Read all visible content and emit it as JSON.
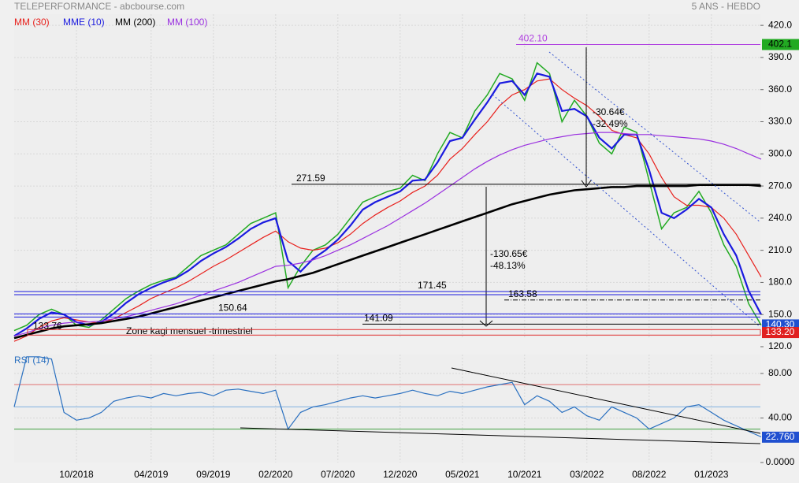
{
  "chart_data": [
    {
      "type": "line",
      "title": "TELEPERFORMANCE - abcbourse.com",
      "subtitle": "5 ANS - HEBDO",
      "color": "#22aa22",
      "values": [
        135,
        140,
        150,
        155,
        150,
        140,
        138,
        145,
        155,
        165,
        172,
        178,
        182,
        185,
        195,
        205,
        210,
        215,
        225,
        235,
        240,
        245,
        175,
        195,
        210,
        215,
        225,
        240,
        255,
        260,
        265,
        268,
        280,
        275,
        300,
        320,
        315,
        340,
        355,
        375,
        370,
        350,
        385,
        375,
        330,
        350,
        335,
        310,
        300,
        325,
        320,
        275,
        230,
        245,
        250,
        265,
        245,
        215,
        195,
        160,
        140
      ],
      "series": [
        {
          "name": "MM (30)",
          "color": "#e8201c",
          "values": [
            125,
            130,
            138,
            144,
            147,
            145,
            143,
            142,
            146,
            152,
            158,
            165,
            170,
            175,
            181,
            188,
            195,
            201,
            208,
            215,
            222,
            228,
            218,
            212,
            210,
            212,
            217,
            225,
            235,
            243,
            250,
            256,
            264,
            270,
            280,
            295,
            305,
            318,
            330,
            345,
            355,
            360,
            368,
            370,
            360,
            352,
            345,
            335,
            322,
            318,
            315,
            300,
            278,
            260,
            252,
            252,
            250,
            240,
            225,
            205,
            185
          ]
        },
        {
          "name": "MME (10)",
          "color": "#1a1adf",
          "values": [
            130,
            137,
            146,
            152,
            150,
            143,
            140,
            143,
            151,
            161,
            169,
            175,
            180,
            184,
            191,
            200,
            207,
            213,
            221,
            230,
            236,
            240,
            200,
            190,
            202,
            210,
            220,
            233,
            248,
            255,
            260,
            265,
            275,
            276,
            292,
            312,
            315,
            332,
            348,
            366,
            368,
            355,
            375,
            372,
            340,
            342,
            335,
            315,
            305,
            318,
            318,
            285,
            245,
            240,
            248,
            258,
            250,
            225,
            205,
            172,
            150
          ]
        },
        {
          "name": "MM (200)",
          "color": "#000000",
          "values": [
            128,
            131,
            134,
            137,
            139,
            140,
            141,
            142,
            144,
            146,
            148,
            151,
            154,
            157,
            160,
            163,
            166,
            169,
            172,
            175,
            178,
            181,
            183,
            186,
            189,
            193,
            197,
            201,
            205,
            209,
            213,
            217,
            221,
            225,
            229,
            233,
            237,
            241,
            245,
            249,
            253,
            256,
            259,
            262,
            264,
            266,
            267,
            268,
            269,
            269,
            270,
            270,
            270,
            270,
            270,
            271,
            271,
            271,
            271,
            271,
            270
          ]
        },
        {
          "name": "MM (100)",
          "color": "#9a30e0",
          "values": [
            130,
            133,
            137,
            140,
            142,
            143,
            143,
            144,
            146,
            148,
            151,
            154,
            157,
            160,
            164,
            168,
            172,
            176,
            180,
            185,
            190,
            195,
            196,
            198,
            201,
            205,
            210,
            215,
            221,
            227,
            233,
            240,
            247,
            254,
            262,
            270,
            278,
            286,
            293,
            299,
            304,
            308,
            311,
            314,
            316,
            318,
            319,
            320,
            320,
            319,
            318,
            318,
            317,
            316,
            315,
            314,
            312,
            309,
            305,
            300,
            295
          ]
        }
      ],
      "ylim": [
        120,
        426
      ],
      "yticks": [
        {
          "value": 120,
          "label": "120.0"
        },
        {
          "value": 150,
          "label": "150.0"
        },
        {
          "value": 180,
          "label": "180.0"
        },
        {
          "value": 210,
          "label": "210.0"
        },
        {
          "value": 240,
          "label": "240.0"
        },
        {
          "value": 270,
          "label": "270.0"
        },
        {
          "value": 300,
          "label": "300.0"
        },
        {
          "value": 330,
          "label": "330.0"
        },
        {
          "value": 360,
          "label": "360.0"
        },
        {
          "value": 390,
          "label": "390.0"
        },
        {
          "value": 420,
          "label": "420.0"
        }
      ],
      "levels": [
        {
          "value": 402.1,
          "label": "402.10",
          "color": "#b040e0"
        },
        {
          "value": 271.59,
          "color": "#000000"
        },
        {
          "value": 171.45,
          "color": "#1a1adf"
        },
        {
          "value": 163.58,
          "color": "#000000"
        },
        {
          "value": 150.64,
          "color": "#1a1adf"
        },
        {
          "value": 141.09,
          "color": "#000000"
        },
        {
          "value": 133.76,
          "color": "#e03030"
        }
      ],
      "price_tags": [
        {
          "value": 402.1,
          "label": "402.1",
          "color": "#22aa22"
        },
        {
          "value": 140.3,
          "label": "140.30",
          "color": "#2050d0"
        },
        {
          "value": 133.2,
          "label": "133.20",
          "color": "#e02020"
        }
      ],
      "annotations": [
        "-30.64€",
        "-32.49%",
        "-130.65€",
        "-48.13%"
      ],
      "zone_label": "Zone kagi mensuel -trimestriel",
      "grid": true
    },
    {
      "type": "line",
      "title": "RSI (14)",
      "color": "#2a70c0",
      "categories": [
        null,
        null,
        null,
        null,
        null,
        "10/2018",
        null,
        null,
        null,
        null,
        null,
        "04/2019",
        null,
        null,
        null,
        null,
        "09/2019",
        null,
        null,
        null,
        null,
        "02/2020",
        null,
        null,
        null,
        null,
        "07/2020",
        null,
        null,
        null,
        null,
        "12/2020",
        null,
        null,
        null,
        null,
        "05/2021",
        null,
        null,
        null,
        null,
        "10/2021",
        null,
        null,
        null,
        null,
        "03/2022",
        null,
        null,
        null,
        null,
        "08/2022",
        null,
        null,
        null,
        null,
        "01/2023",
        null,
        null,
        null,
        null
      ],
      "values": [
        50,
        95,
        95,
        93,
        45,
        38,
        40,
        45,
        55,
        58,
        60,
        58,
        62,
        60,
        62,
        63,
        60,
        65,
        66,
        64,
        62,
        65,
        30,
        45,
        50,
        52,
        55,
        58,
        60,
        58,
        60,
        62,
        65,
        62,
        60,
        64,
        62,
        65,
        68,
        70,
        72,
        52,
        60,
        55,
        45,
        50,
        42,
        38,
        50,
        45,
        40,
        30,
        35,
        40,
        50,
        52,
        45,
        38,
        33,
        28,
        23
      ],
      "ylim": [
        0,
        97
      ],
      "yticks": [
        {
          "value": 0,
          "label": "0.0000"
        },
        {
          "value": 40,
          "label": "40.00"
        },
        {
          "value": 80,
          "label": "80.00"
        }
      ],
      "levels": [
        {
          "value": 70,
          "color": "#e07070"
        },
        {
          "value": 50,
          "color": "#80b0e0"
        },
        {
          "value": 30,
          "color": "#40a040"
        }
      ],
      "price_tag": {
        "value": 22.76,
        "label": "22.760",
        "color": "#2050d0"
      },
      "grid": true
    }
  ]
}
